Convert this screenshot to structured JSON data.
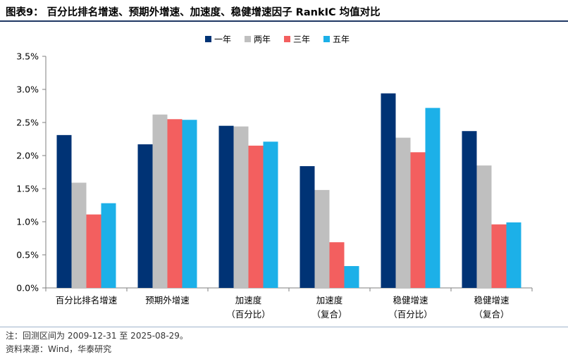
{
  "figure": {
    "title": "图表9：  百分比排名增速、预期外增速、加速度、稳健增速因子 RankIC 均值对比",
    "note": "注：回测区间为 2009-12-31 至 2025-08-29。",
    "source": "资料来源：Wind，华泰研究"
  },
  "chart_data": {
    "type": "bar",
    "categories": [
      [
        "百分比排名增速"
      ],
      [
        "预期外增速"
      ],
      [
        "加速度",
        "（百分比）"
      ],
      [
        "加速度",
        "（复合）"
      ],
      [
        "稳健增速",
        "（百分比）"
      ],
      [
        "稳健增速",
        "（复合）"
      ]
    ],
    "series": [
      {
        "name": "一年",
        "color": "#003375",
        "values": [
          2.31,
          2.17,
          2.45,
          1.84,
          2.94,
          2.37
        ]
      },
      {
        "name": "两年",
        "color": "#bfbfbf",
        "values": [
          1.59,
          2.62,
          2.44,
          1.48,
          2.27,
          1.85
        ]
      },
      {
        "name": "三年",
        "color": "#f35f5f",
        "values": [
          1.11,
          2.55,
          2.15,
          0.69,
          2.05,
          0.96
        ]
      },
      {
        "name": "五年",
        "color": "#1cb0e8",
        "values": [
          1.28,
          2.54,
          2.21,
          0.33,
          2.72,
          0.99
        ]
      }
    ],
    "ylim": [
      0,
      3.5
    ],
    "y_ticks": [
      "0.0%",
      "0.5%",
      "1.0%",
      "1.5%",
      "2.0%",
      "2.5%",
      "3.0%",
      "3.5%"
    ],
    "y_unit": "%",
    "grid": false,
    "legend_position": "top-center"
  }
}
